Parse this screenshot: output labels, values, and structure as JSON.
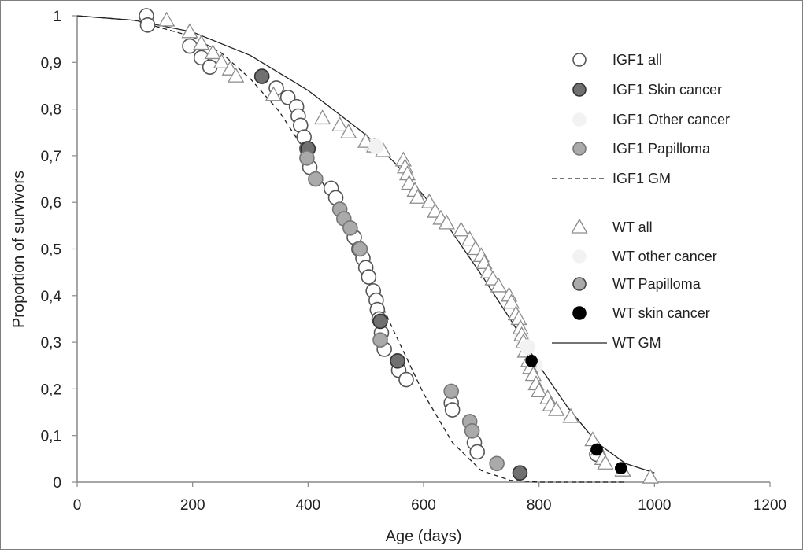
{
  "chart_data": {
    "type": "scatter",
    "title": "",
    "xlabel": "Age (days)",
    "ylabel": "Proportion of survivors",
    "xlim": [
      0,
      1200
    ],
    "ylim": [
      0,
      1
    ],
    "grid": false,
    "legend_position": "right",
    "x_ticks": [
      0,
      200,
      400,
      600,
      800,
      1000,
      1200
    ],
    "y_ticks": [
      0,
      0.1,
      0.2,
      0.3,
      0.4,
      0.5,
      0.6,
      0.7,
      0.8,
      0.9,
      1
    ],
    "x_tick_labels": [
      "0",
      "200",
      "400",
      "600",
      "800",
      "1000",
      "1200"
    ],
    "y_tick_labels": [
      "0",
      "0,1",
      "0,2",
      "0,3",
      "0,4",
      "0,5",
      "0,6",
      "0,7",
      "0,8",
      "0,9",
      "1"
    ],
    "series": [
      {
        "name": "IGF1 all",
        "marker": "circle",
        "fill": "#ffffff",
        "stroke": "#555555",
        "points": [
          [
            120,
            1.0
          ],
          [
            122,
            0.98
          ],
          [
            195,
            0.935
          ],
          [
            215,
            0.91
          ],
          [
            230,
            0.89
          ],
          [
            345,
            0.845
          ],
          [
            365,
            0.825
          ],
          [
            380,
            0.805
          ],
          [
            383,
            0.785
          ],
          [
            387,
            0.765
          ],
          [
            393,
            0.74
          ],
          [
            398,
            0.715
          ],
          [
            403,
            0.675
          ],
          [
            440,
            0.63
          ],
          [
            448,
            0.61
          ],
          [
            480,
            0.525
          ],
          [
            488,
            0.5
          ],
          [
            495,
            0.48
          ],
          [
            500,
            0.46
          ],
          [
            505,
            0.44
          ],
          [
            513,
            0.41
          ],
          [
            518,
            0.39
          ],
          [
            520,
            0.37
          ],
          [
            523,
            0.35
          ],
          [
            527,
            0.32
          ],
          [
            532,
            0.285
          ],
          [
            557,
            0.24
          ],
          [
            570,
            0.22
          ],
          [
            648,
            0.17
          ],
          [
            650,
            0.155
          ],
          [
            688,
            0.085
          ],
          [
            693,
            0.065
          ],
          [
            900,
            0.06
          ]
        ]
      },
      {
        "name": "IGF1 Skin cancer",
        "marker": "circle",
        "fill": "#707070",
        "stroke": "#333333",
        "points": [
          [
            320,
            0.87
          ],
          [
            400,
            0.715
          ],
          [
            525,
            0.345
          ],
          [
            555,
            0.26
          ],
          [
            767,
            0.02
          ]
        ]
      },
      {
        "name": "IGF1 Other cancer",
        "marker": "circle",
        "fill": "#f2f2f2",
        "stroke": "#f2f2f2",
        "points": [
          [
            510,
            0.72
          ],
          [
            770,
            0.31
          ],
          [
            793,
            0.25
          ]
        ]
      },
      {
        "name": "IGF1 Papilloma",
        "marker": "circle",
        "fill": "#aaaaaa",
        "stroke": "#777777",
        "points": [
          [
            398,
            0.695
          ],
          [
            413,
            0.65
          ],
          [
            455,
            0.585
          ],
          [
            462,
            0.565
          ],
          [
            473,
            0.545
          ],
          [
            490,
            0.5
          ],
          [
            525,
            0.305
          ],
          [
            648,
            0.195
          ],
          [
            680,
            0.13
          ],
          [
            684,
            0.11
          ],
          [
            727,
            0.04
          ]
        ]
      },
      {
        "name": "WT all",
        "marker": "triangle",
        "fill": "#ffffff",
        "stroke": "#8c8c8c",
        "points": [
          [
            155,
            0.99
          ],
          [
            195,
            0.965
          ],
          [
            215,
            0.94
          ],
          [
            235,
            0.92
          ],
          [
            250,
            0.9
          ],
          [
            265,
            0.885
          ],
          [
            275,
            0.87
          ],
          [
            340,
            0.83
          ],
          [
            425,
            0.78
          ],
          [
            455,
            0.765
          ],
          [
            470,
            0.75
          ],
          [
            500,
            0.73
          ],
          [
            515,
            0.72
          ],
          [
            530,
            0.71
          ],
          [
            565,
            0.69
          ],
          [
            568,
            0.675
          ],
          [
            572,
            0.66
          ],
          [
            575,
            0.64
          ],
          [
            585,
            0.625
          ],
          [
            590,
            0.61
          ],
          [
            610,
            0.6
          ],
          [
            620,
            0.58
          ],
          [
            630,
            0.565
          ],
          [
            640,
            0.555
          ],
          [
            665,
            0.54
          ],
          [
            680,
            0.52
          ],
          [
            690,
            0.5
          ],
          [
            700,
            0.485
          ],
          [
            705,
            0.47
          ],
          [
            712,
            0.45
          ],
          [
            720,
            0.435
          ],
          [
            730,
            0.42
          ],
          [
            748,
            0.4
          ],
          [
            752,
            0.385
          ],
          [
            760,
            0.36
          ],
          [
            765,
            0.35
          ],
          [
            768,
            0.33
          ],
          [
            770,
            0.315
          ],
          [
            773,
            0.3
          ],
          [
            776,
            0.28
          ],
          [
            782,
            0.26
          ],
          [
            785,
            0.245
          ],
          [
            790,
            0.23
          ],
          [
            795,
            0.21
          ],
          [
            800,
            0.195
          ],
          [
            815,
            0.18
          ],
          [
            820,
            0.165
          ],
          [
            830,
            0.155
          ],
          [
            855,
            0.14
          ],
          [
            893,
            0.09
          ],
          [
            903,
            0.07
          ],
          [
            910,
            0.05
          ],
          [
            915,
            0.04
          ],
          [
            945,
            0.025
          ],
          [
            993,
            0.01
          ]
        ]
      },
      {
        "name": "WT other cancer",
        "marker": "circle",
        "fill": "#f2f2f2",
        "stroke": "#f2f2f2",
        "points": [
          [
            518,
            0.72
          ],
          [
            780,
            0.29
          ]
        ]
      },
      {
        "name": "WT Papilloma",
        "marker": "circle",
        "fill": "#aaaaaa",
        "stroke": "#444444",
        "points": []
      },
      {
        "name": "WT skin cancer",
        "marker": "circle",
        "fill": "#000000",
        "stroke": "#000000",
        "small": true,
        "points": [
          [
            787,
            0.26
          ],
          [
            900,
            0.07
          ],
          [
            942,
            0.03
          ]
        ]
      }
    ],
    "fits": [
      {
        "name": "IGF1 GM",
        "style": "dashed",
        "points": [
          [
            0,
            1.0
          ],
          [
            100,
            0.99
          ],
          [
            200,
            0.955
          ],
          [
            250,
            0.92
          ],
          [
            300,
            0.865
          ],
          [
            350,
            0.795
          ],
          [
            400,
            0.7
          ],
          [
            450,
            0.585
          ],
          [
            500,
            0.455
          ],
          [
            550,
            0.32
          ],
          [
            600,
            0.19
          ],
          [
            650,
            0.085
          ],
          [
            700,
            0.025
          ],
          [
            750,
            0.004
          ],
          [
            800,
            0.0
          ],
          [
            950,
            0.0
          ]
        ]
      },
      {
        "name": "WT GM",
        "style": "solid",
        "points": [
          [
            0,
            1.0
          ],
          [
            100,
            0.99
          ],
          [
            200,
            0.965
          ],
          [
            300,
            0.915
          ],
          [
            400,
            0.84
          ],
          [
            500,
            0.745
          ],
          [
            550,
            0.685
          ],
          [
            600,
            0.615
          ],
          [
            650,
            0.535
          ],
          [
            700,
            0.445
          ],
          [
            750,
            0.35
          ],
          [
            800,
            0.25
          ],
          [
            850,
            0.16
          ],
          [
            900,
            0.085
          ],
          [
            950,
            0.04
          ],
          [
            1000,
            0.02
          ]
        ]
      }
    ],
    "legend": [
      {
        "label": "IGF1 all",
        "type": "circle",
        "fill": "#ffffff",
        "stroke": "#555555"
      },
      {
        "label": "IGF1 Skin cancer",
        "type": "circle",
        "fill": "#707070",
        "stroke": "#333333"
      },
      {
        "label": "IGF1 Other cancer",
        "type": "circle",
        "fill": "#f2f2f2",
        "stroke": "#f2f2f2"
      },
      {
        "label": "IGF1 Papilloma",
        "type": "circle",
        "fill": "#aaaaaa",
        "stroke": "#777777"
      },
      {
        "label": "IGF1 GM",
        "type": "dashed",
        "fill": "none",
        "stroke": "#222222"
      },
      {
        "label": "WT all",
        "type": "triangle",
        "fill": "#ffffff",
        "stroke": "#8c8c8c"
      },
      {
        "label": "WT other cancer",
        "type": "circle",
        "fill": "#f2f2f2",
        "stroke": "#f2f2f2"
      },
      {
        "label": "WT Papilloma",
        "type": "circle",
        "fill": "#aaaaaa",
        "stroke": "#444444"
      },
      {
        "label": "WT skin cancer",
        "type": "circle",
        "fill": "#000000",
        "stroke": "#000000"
      },
      {
        "label": "WT GM",
        "type": "solid",
        "fill": "none",
        "stroke": "#222222"
      }
    ]
  }
}
